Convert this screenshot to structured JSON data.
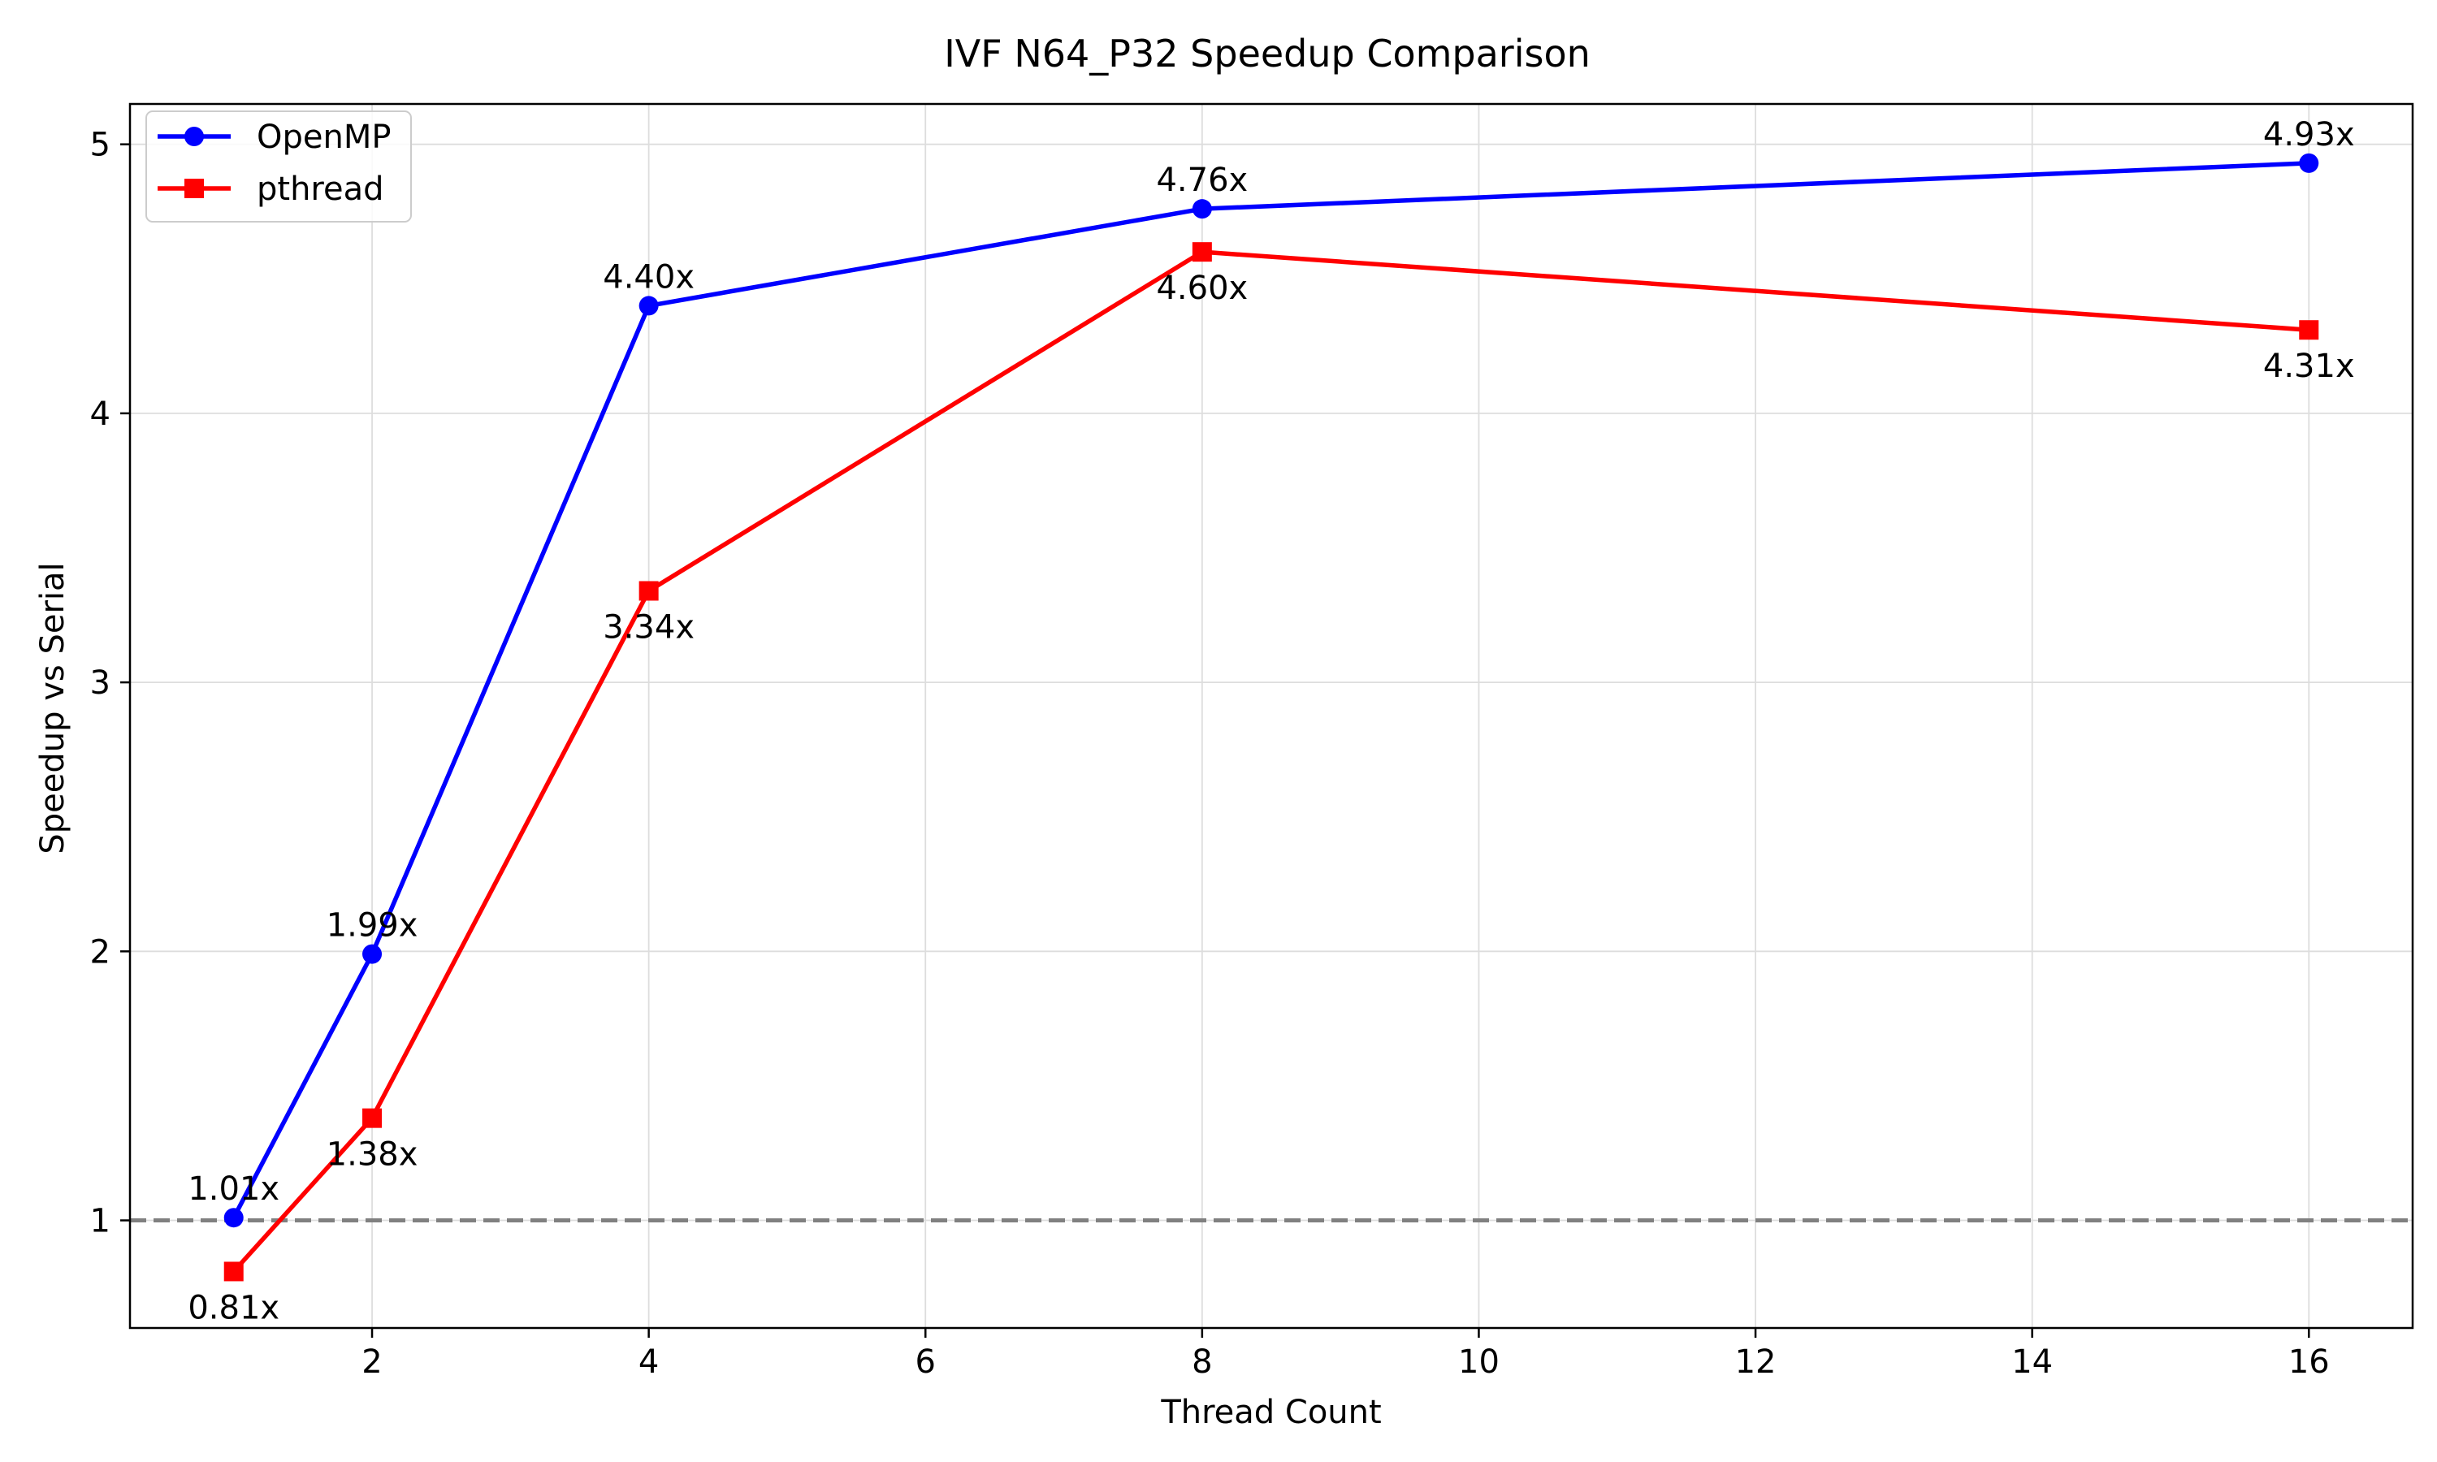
{
  "chart_data": {
    "type": "line",
    "title": "IVF N64_P32 Speedup Comparison",
    "xlabel": "Thread Count",
    "ylabel": "Speedup vs Serial",
    "xlim": [
      0.25,
      16.75
    ],
    "ylim": [
      0.6,
      5.15
    ],
    "x_ticks": [
      2,
      4,
      6,
      8,
      10,
      12,
      14,
      16
    ],
    "y_ticks": [
      1,
      2,
      3,
      4,
      5
    ],
    "grid": true,
    "legend_position": "top-left",
    "reference_line": {
      "y": 1,
      "style": "dashed",
      "color": "#808080"
    },
    "x": [
      1,
      2,
      4,
      8,
      16
    ],
    "series": [
      {
        "name": "OpenMP",
        "color": "#0000ff",
        "marker": "circle",
        "values": [
          1.01,
          1.99,
          4.4,
          4.76,
          4.93
        ],
        "labels": [
          "1.01x",
          "1.99x",
          "4.40x",
          "4.76x",
          "4.93x"
        ],
        "label_position": "above"
      },
      {
        "name": "pthread",
        "color": "#ff0000",
        "marker": "square",
        "values": [
          0.81,
          1.38,
          3.34,
          4.6,
          4.31
        ],
        "labels": [
          "0.81x",
          "1.38x",
          "3.34x",
          "4.60x",
          "4.31x"
        ],
        "label_position": "below"
      }
    ]
  }
}
